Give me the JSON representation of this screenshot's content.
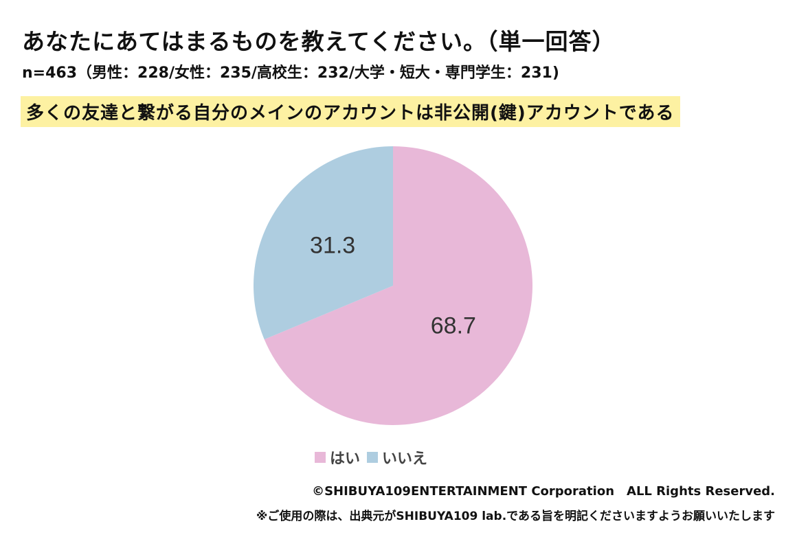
{
  "header": {
    "title": "あなたにあてはまるものを教えてください。（単一回答）",
    "sample": "n=463（男性：228/女性：235/高校生：232/大学・短大・専門学生：231)",
    "question": "多くの友達と繋がる自分のメインのアカウントは非公開(鍵)アカウントである"
  },
  "chart_data": {
    "type": "pie",
    "categories": [
      "はい",
      "いいえ"
    ],
    "values": [
      68.7,
      31.3
    ],
    "data_labels": [
      "68.7",
      "31.3"
    ],
    "colors": [
      "#e8b8d8",
      "#aecde0"
    ],
    "start": "12 o'clock, clockwise",
    "legend_position": "bottom"
  },
  "footer": {
    "copyright": "©SHIBUYA109ENTERTAINMENT Corporation　ALL Rights Reserved.",
    "notice": "※ご使用の際は、出典元がSHIBUYA109 lab.である旨を明記くださいますようお願いいたします"
  }
}
